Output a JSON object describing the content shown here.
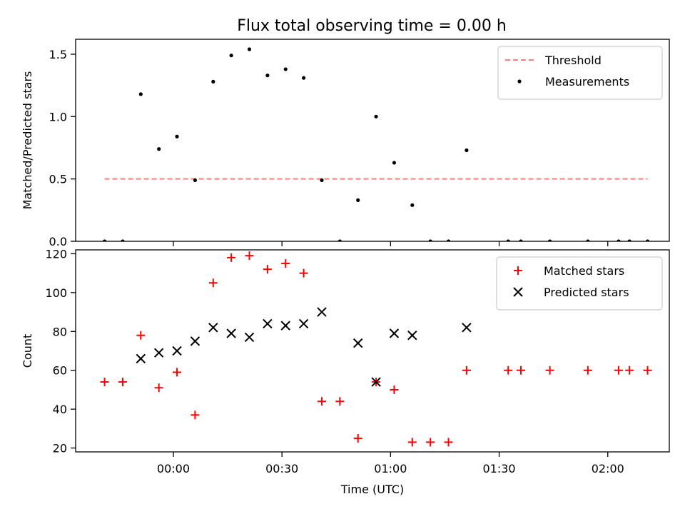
{
  "figure_title": "Flux total observing time = 0.00 h",
  "chart_data": [
    {
      "type": "scatter",
      "title": "Flux total observing time = 0.00 h",
      "xlabel": "",
      "ylabel": "Matched/Predicted stars",
      "x_unit": "minutes from 00:00 UTC",
      "xlim": [
        -27,
        137
      ],
      "ylim": [
        0,
        1.62
      ],
      "yticks": [
        0.0,
        0.5,
        1.0,
        1.5
      ],
      "ytick_labels": [
        "0.0",
        "0.5",
        "1.0",
        "1.5"
      ],
      "legend_position": "upper right",
      "threshold": {
        "name": "Threshold",
        "value": 0.5,
        "x_range": [
          -19,
          131
        ],
        "color": "#ff7f7f",
        "style": "dashed"
      },
      "series": [
        {
          "name": "Measurements",
          "color": "#000000",
          "marker": "dot",
          "x": [
            -19,
            -14,
            -9,
            -4,
            1,
            6,
            11,
            16,
            21,
            26,
            31,
            36,
            41,
            46,
            51,
            56,
            61,
            66,
            71,
            76,
            81,
            92.5,
            96,
            104,
            114.5,
            123,
            126,
            131
          ],
          "y": [
            0,
            0,
            1.18,
            0.74,
            0.84,
            0.49,
            1.28,
            1.49,
            1.54,
            1.33,
            1.38,
            1.31,
            0.49,
            0,
            0.33,
            1.0,
            0.63,
            0.29,
            0,
            0,
            0.73,
            0,
            0,
            0,
            0,
            0,
            0,
            0
          ]
        }
      ]
    },
    {
      "type": "scatter",
      "title": "",
      "xlabel": "Time (UTC)",
      "ylabel": "Count",
      "x_unit": "minutes from 00:00 UTC",
      "xlim": [
        -27,
        137
      ],
      "ylim": [
        18,
        122
      ],
      "yticks": [
        20,
        40,
        60,
        80,
        100,
        120
      ],
      "ytick_labels": [
        "20",
        "40",
        "60",
        "80",
        "100",
        "120"
      ],
      "xticks": [
        0,
        30,
        60,
        90,
        120
      ],
      "xtick_labels": [
        "00:00",
        "00:30",
        "01:00",
        "01:30",
        "02:00"
      ],
      "legend_position": "upper right",
      "series": [
        {
          "name": "Matched stars",
          "color": "#ff0000",
          "marker": "plus",
          "x": [
            -19,
            -14,
            -9,
            -4,
            1,
            6,
            11,
            16,
            21,
            26,
            31,
            36,
            41,
            46,
            51,
            56,
            61,
            66,
            71,
            76,
            81,
            92.5,
            96,
            104,
            114.5,
            123,
            126,
            131
          ],
          "y": [
            54,
            54,
            78,
            51,
            59,
            37,
            105,
            118,
            119,
            112,
            115,
            110,
            44,
            44,
            25,
            54,
            50,
            23,
            23,
            23,
            60,
            60,
            60,
            60,
            60,
            60,
            60,
            60
          ]
        },
        {
          "name": "Predicted stars",
          "color": "#000000",
          "marker": "x",
          "x": [
            -9,
            -4,
            1,
            6,
            11,
            16,
            21,
            26,
            31,
            36,
            41,
            51,
            56,
            61,
            66,
            81
          ],
          "y": [
            66,
            69,
            70,
            75,
            82,
            79,
            77,
            84,
            83,
            84,
            90,
            74,
            54,
            79,
            78,
            82
          ]
        }
      ]
    }
  ]
}
